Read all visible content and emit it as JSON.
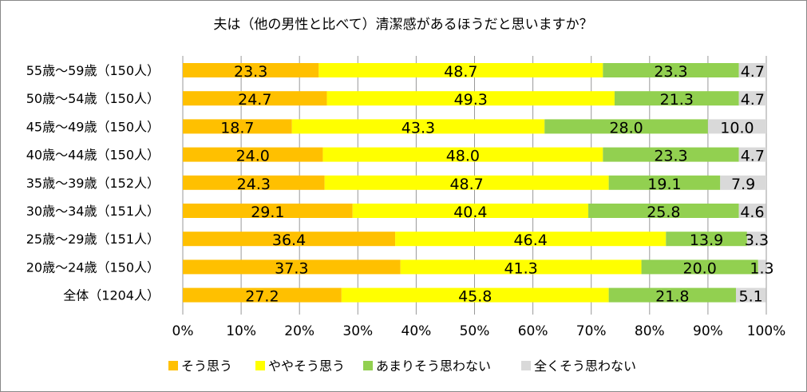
{
  "chart_data": {
    "type": "bar",
    "orientation": "horizontal",
    "stacked": "percent",
    "title": "夫は（他の男性と比べて）清潔感があるほうだと思いますか？",
    "categories": [
      "55歳～59歳（150人）",
      "50歳～54歳（150人）",
      "45歳～49歳（150人）",
      "40歳～44歳（150人）",
      "35歳～39歳（152人）",
      "30歳～34歳（151人）",
      "25歳～29歳（151人）",
      "20歳～24歳（150人）",
      "全体（1204人）"
    ],
    "series": [
      {
        "name": "そう思う",
        "color": "#FFC000",
        "values": [
          23.3,
          24.7,
          18.7,
          24.0,
          24.3,
          29.1,
          36.4,
          37.3,
          27.2
        ]
      },
      {
        "name": "ややそう思う",
        "color": "#FFFF00",
        "values": [
          48.7,
          49.3,
          43.3,
          48.0,
          48.7,
          40.4,
          46.4,
          41.3,
          45.8
        ]
      },
      {
        "name": "あまりそう思わない",
        "color": "#92D050",
        "values": [
          23.3,
          21.3,
          28.0,
          23.3,
          19.1,
          25.8,
          13.9,
          20.0,
          21.8
        ]
      },
      {
        "name": "全くそう思わない",
        "color": "#D9D9D9",
        "values": [
          4.7,
          4.7,
          10.0,
          4.7,
          7.9,
          4.6,
          3.3,
          1.3,
          5.1
        ]
      }
    ],
    "xlim": [
      0,
      100
    ],
    "xticks": [
      "0%",
      "10%",
      "20%",
      "30%",
      "40%",
      "50%",
      "60%",
      "70%",
      "80%",
      "90%",
      "100%"
    ],
    "grid": true,
    "legend": "bottom"
  }
}
